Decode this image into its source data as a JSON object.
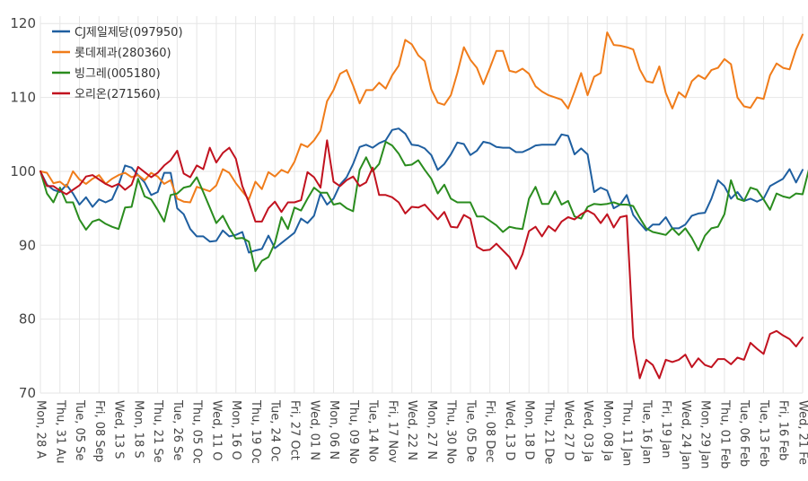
{
  "chart_data": {
    "type": "line",
    "title": "",
    "xlabel": "",
    "ylabel": "",
    "ylim": [
      70,
      121
    ],
    "yticks": [
      70,
      80,
      90,
      100,
      110,
      120
    ],
    "grid": true,
    "legend_position": "top-left",
    "x_tick_labels": [
      "Mon, 28 A",
      "Thu, 31 Au",
      "Tue, 05 Se",
      "Fri, 08 Sep",
      "Wed, 13 S",
      "Mon, 18 S",
      "Thu, 21 Se",
      "Tue, 26 Se",
      "Thu, 05 Oc",
      "Wed, 11 O",
      "Mon, 16 O",
      "Thu, 19 Oc",
      "Tue, 24 Oc",
      "Fri, 27 Oct",
      "Wed, 01 N",
      "Mon, 06 N",
      "Thu, 09 No",
      "Tue, 14 No",
      "Fri, 17 Nov",
      "Wed, 22 N",
      "Mon, 27 N",
      "Thu, 30 No",
      "Tue, 05 De",
      "Fri, 08 Dec",
      "Wed, 13 D",
      "Mon, 18 D",
      "Thu, 21 De",
      "Wed, 27 D",
      "Wed, 03 Ja",
      "Mon, 08 Ja",
      "Thu, 11 Jan",
      "Tue, 16 Jan",
      "Fri, 19 Jan",
      "Wed, 24 Jan",
      "Mon, 29 Jan",
      "Thu, 01 Feb",
      "Tue, 06 Feb",
      "Tue, 13 Feb",
      "Fri, 16 Feb",
      "Wed, 21 Fe"
    ],
    "tick_index_step": 3,
    "series": [
      {
        "name": "CJ제일제당(097950)",
        "color": "#1f5fa0",
        "values": [
          100,
          98.2,
          97.5,
          97.2,
          98.2,
          97.0,
          95.5,
          96.5,
          95.2,
          96.2,
          95.8,
          96.2,
          98.2,
          100.8,
          100.5,
          99.5,
          98.5,
          96.8,
          97.2,
          99.8,
          99.8,
          95.0,
          94.2,
          92.2,
          91.2,
          91.2,
          90.5,
          90.6,
          92.0,
          91.2,
          91.4,
          91.8,
          89.0,
          89.3,
          89.5,
          91.3,
          89.6,
          90.3,
          91.0,
          91.7,
          93.6,
          93.0,
          94.0,
          97.0,
          95.5,
          96.3,
          98.2,
          99.2,
          101.0,
          103.3,
          103.6,
          103.2,
          103.8,
          104.2,
          105.6,
          105.8,
          105.1,
          103.6,
          103.5,
          103.1,
          102.2,
          100.2,
          101.0,
          102.3,
          103.9,
          103.7,
          102.2,
          102.8,
          104.0,
          103.8,
          103.3,
          103.2,
          103.2,
          102.6,
          102.6,
          103.0,
          103.5,
          103.6,
          103.6,
          103.6,
          105.0,
          104.8,
          102.3,
          103.1,
          102.3,
          97.2,
          97.8,
          97.4,
          95.0,
          95.5,
          96.8,
          94.1,
          93.0,
          92.0,
          92.8,
          92.8,
          93.8,
          92.3,
          92.3,
          92.8,
          94.0,
          94.3,
          94.4,
          96.3,
          98.8,
          98.0,
          96.3,
          97.2,
          96.0,
          96.3,
          95.9,
          96.3,
          98.0,
          98.5,
          99.0,
          100.3,
          98.5,
          100.2
        ]
      },
      {
        "name": "롯데제과(280360)",
        "color": "#f07c1a",
        "values": [
          100,
          99.8,
          98.4,
          98.6,
          97.9,
          100.0,
          98.9,
          98.3,
          99.0,
          99.5,
          98.3,
          99.0,
          99.5,
          99.8,
          99.2,
          99.5,
          98.8,
          99.8,
          99.3,
          98.3,
          98.8,
          96.3,
          95.9,
          95.8,
          97.9,
          97.6,
          97.3,
          98.1,
          100.3,
          99.8,
          98.4,
          97.3,
          96.2,
          98.6,
          97.6,
          99.9,
          99.3,
          100.2,
          99.8,
          101.3,
          103.7,
          103.3,
          104.2,
          105.5,
          109.5,
          111.0,
          113.2,
          113.7,
          111.6,
          109.2,
          111.0,
          111.0,
          112.0,
          111.2,
          113.0,
          114.3,
          117.8,
          117.2,
          115.7,
          114.9,
          111.1,
          109.3,
          109.0,
          110.3,
          113.3,
          116.8,
          115.1,
          114.0,
          111.8,
          114.0,
          116.3,
          116.3,
          113.6,
          113.4,
          113.9,
          113.2,
          111.5,
          110.8,
          110.3,
          110.0,
          109.7,
          108.5,
          110.8,
          113.3,
          110.3,
          112.8,
          113.3,
          118.8,
          117.1,
          117.0,
          116.8,
          116.5,
          113.8,
          112.2,
          112.0,
          114.2,
          110.6,
          108.5,
          110.7,
          110.0,
          112.2,
          113.0,
          112.5,
          113.7,
          114.0,
          115.2,
          114.5,
          110.0,
          108.8,
          108.6,
          110.0,
          109.8,
          113.0,
          114.6,
          114.0,
          113.8,
          116.5,
          118.5
        ]
      },
      {
        "name": "빙그레(005180)",
        "color": "#2a8c1e",
        "values": [
          100,
          97.0,
          95.8,
          97.8,
          95.8,
          95.8,
          93.5,
          92.1,
          93.2,
          93.5,
          92.9,
          92.5,
          92.2,
          95.1,
          95.2,
          99.0,
          96.6,
          96.2,
          94.8,
          93.2,
          96.8,
          97.0,
          97.8,
          98.0,
          99.2,
          97.2,
          95.1,
          93.0,
          94.0,
          92.3,
          90.9,
          91.0,
          90.5,
          86.5,
          87.9,
          88.4,
          90.3,
          93.8,
          92.2,
          95.1,
          94.7,
          96.3,
          97.8,
          97.1,
          97.1,
          95.5,
          95.7,
          95.0,
          94.6,
          100.2,
          101.9,
          100.0,
          101.0,
          104.0,
          103.5,
          102.4,
          100.8,
          100.9,
          101.5,
          100.2,
          99.0,
          97.0,
          98.2,
          96.3,
          95.8,
          95.8,
          95.8,
          93.9,
          93.9,
          93.3,
          92.7,
          91.8,
          92.5,
          92.3,
          92.2,
          96.3,
          97.9,
          95.6,
          95.6,
          97.3,
          95.5,
          96.0,
          93.9,
          93.6,
          95.2,
          95.6,
          95.5,
          95.6,
          95.8,
          95.5,
          95.5,
          95.3,
          93.7,
          92.3,
          91.8,
          91.6,
          91.4,
          92.3,
          91.4,
          92.3,
          91.0,
          89.3,
          91.3,
          92.3,
          92.5,
          94.2,
          98.8,
          96.3,
          96.0,
          97.8,
          97.5,
          96.2,
          94.8,
          97.0,
          96.6,
          96.4,
          97.0,
          96.9,
          100.4
        ]
      },
      {
        "name": "오리온(271560)",
        "color": "#c1121f",
        "values": [
          100,
          98.0,
          98.0,
          97.4,
          96.9,
          97.5,
          98.1,
          99.3,
          99.5,
          98.9,
          98.3,
          97.9,
          98.3,
          97.5,
          98.2,
          100.6,
          99.9,
          99.2,
          99.8,
          100.8,
          101.5,
          102.8,
          99.7,
          99.2,
          100.8,
          100.3,
          103.2,
          101.2,
          102.5,
          103.2,
          101.7,
          98.0,
          95.8,
          93.2,
          93.2,
          95.0,
          95.9,
          94.5,
          95.8,
          95.8,
          96.1,
          99.9,
          99.2,
          97.8,
          104.2,
          98.6,
          98.0,
          98.8,
          99.3,
          98.0,
          98.5,
          100.5,
          96.8,
          96.8,
          96.5,
          95.8,
          94.3,
          95.2,
          95.1,
          95.5,
          94.5,
          93.5,
          94.5,
          92.5,
          92.4,
          94.1,
          93.6,
          89.8,
          89.3,
          89.4,
          90.2,
          89.3,
          88.4,
          86.8,
          88.8,
          91.9,
          92.5,
          91.2,
          92.6,
          91.9,
          93.2,
          93.8,
          93.5,
          94.2,
          94.7,
          94.2,
          93.0,
          94.2,
          92.4,
          93.8,
          94.0,
          77.5,
          72.0,
          74.5,
          73.8,
          72.0,
          74.5,
          74.2,
          74.5,
          75.2,
          73.5,
          74.7,
          73.8,
          73.5,
          74.6,
          74.6,
          73.9,
          74.8,
          74.5,
          76.8,
          76.0,
          75.3,
          78.0,
          78.4,
          77.8,
          77.3,
          76.3,
          77.5
        ]
      }
    ]
  }
}
